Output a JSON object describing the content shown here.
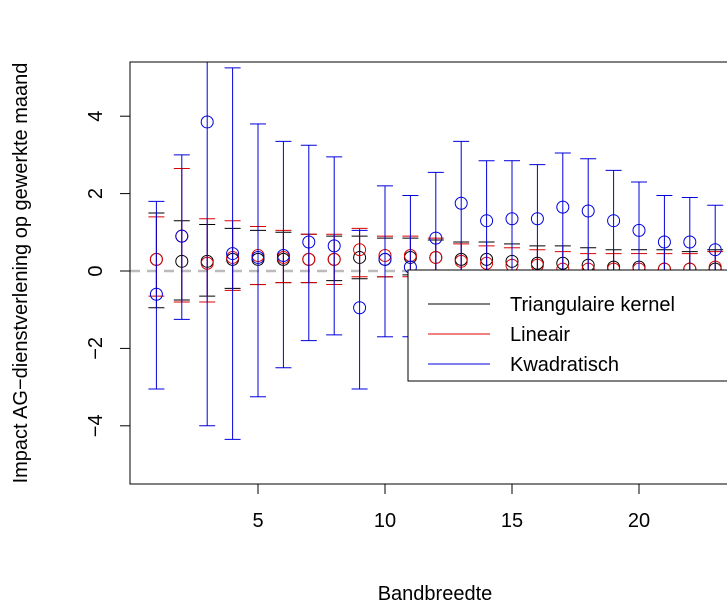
{
  "chart_data": {
    "type": "scatter",
    "xlabel": "Bandbreedte",
    "ylabel": "Impact AG−dienstverlening op gewerkte maand",
    "xlim": [
      0,
      24
    ],
    "ylim": [
      -5.5,
      5.5
    ],
    "xticks": [
      5,
      10,
      15,
      20
    ],
    "xtick_labels": [
      "5",
      "10",
      "15",
      "20"
    ],
    "yticks": [
      -4,
      -2,
      0,
      2,
      4
    ],
    "ytick_labels": [
      "−4",
      "−2",
      "0",
      "2",
      "4"
    ],
    "reference_line": 0,
    "grid": false,
    "legend_position": "bottom-right",
    "series": [
      {
        "name": "Triangulaire kernel",
        "color": "#000000",
        "x": [
          1,
          2,
          3,
          4,
          5,
          6,
          7,
          8,
          9,
          10,
          11,
          12,
          13,
          14,
          15,
          16,
          17,
          18,
          19,
          20,
          21,
          22,
          23
        ],
        "estimate": [
          0.3,
          0.25,
          0.25,
          0.3,
          0.3,
          0.3,
          0.3,
          0.3,
          0.35,
          0.3,
          0.35,
          0.35,
          0.3,
          0.3,
          0.25,
          0.2,
          0.2,
          0.15,
          0.1,
          0.1,
          0.05,
          0.05,
          0.05
        ],
        "lower": [
          -0.95,
          -0.75,
          -0.65,
          -0.45,
          -0.35,
          -0.3,
          -0.3,
          -0.25,
          -0.2,
          -0.15,
          -0.1,
          -0.1,
          -0.15,
          -0.2,
          -0.2,
          -0.25,
          -0.25,
          -0.3,
          -0.3,
          -0.35,
          -0.45,
          -0.4,
          -0.45
        ],
        "upper": [
          1.5,
          1.3,
          1.2,
          1.1,
          1.05,
          1.0,
          0.95,
          0.9,
          0.9,
          0.85,
          0.85,
          0.8,
          0.75,
          0.75,
          0.7,
          0.65,
          0.65,
          0.6,
          0.55,
          0.55,
          0.55,
          0.5,
          0.55
        ]
      },
      {
        "name": "Lineair",
        "color": "#dd0000",
        "x": [
          1,
          2,
          3,
          4,
          5,
          6,
          7,
          8,
          9,
          10,
          11,
          12,
          13,
          14,
          15,
          16,
          17,
          18,
          19,
          20,
          21,
          22,
          23
        ],
        "estimate": [
          0.3,
          0.9,
          0.2,
          0.35,
          0.4,
          0.35,
          0.3,
          0.3,
          0.55,
          0.4,
          0.4,
          0.35,
          0.25,
          0.2,
          0.15,
          0.15,
          0.05,
          0.05,
          0.05,
          0.05,
          0.05,
          0.05,
          0.1
        ],
        "lower": [
          -0.65,
          -0.8,
          -0.8,
          -0.5,
          -0.35,
          -0.3,
          -0.3,
          -0.35,
          -0.15,
          -0.15,
          -0.15,
          -0.15,
          -0.2,
          -0.25,
          -0.25,
          -0.25,
          -0.35,
          -0.35,
          -0.3,
          -0.3,
          -0.3,
          -0.3,
          -0.3
        ],
        "upper": [
          1.4,
          2.65,
          1.35,
          1.3,
          1.15,
          1.05,
          0.95,
          0.95,
          1.1,
          0.9,
          0.9,
          0.85,
          0.7,
          0.65,
          0.6,
          0.55,
          0.5,
          0.45,
          0.45,
          0.45,
          0.45,
          0.45,
          0.5
        ]
      },
      {
        "name": "Kwadratisch",
        "color": "#0000dd",
        "x": [
          1,
          2,
          3,
          4,
          5,
          6,
          7,
          8,
          9,
          10,
          11,
          12,
          13,
          14,
          15,
          16,
          17,
          18,
          19,
          20,
          21,
          22,
          23
        ],
        "estimate": [
          -0.6,
          0.9,
          3.85,
          0.45,
          0.35,
          0.4,
          0.75,
          0.65,
          -0.95,
          0.3,
          0.1,
          0.85,
          1.75,
          1.3,
          1.35,
          1.35,
          1.65,
          1.55,
          1.3,
          1.05,
          0.75,
          0.75,
          0.55
        ],
        "lower": [
          -3.05,
          -1.25,
          -4.0,
          -4.35,
          -3.25,
          -2.5,
          -1.8,
          -1.65,
          -3.05,
          -1.7,
          -1.7,
          -0.9,
          -0.15,
          -0.25,
          -0.15,
          -0.15,
          -0.1,
          -0.05,
          -0.3,
          -0.45,
          -0.45,
          -0.4,
          -0.55
        ],
        "upper": [
          1.8,
          3.0,
          5.5,
          5.25,
          3.8,
          3.35,
          3.25,
          2.95,
          1.05,
          2.2,
          1.95,
          2.55,
          3.35,
          2.85,
          2.85,
          2.75,
          3.05,
          2.9,
          2.6,
          2.3,
          1.95,
          1.9,
          1.7
        ]
      }
    ]
  }
}
